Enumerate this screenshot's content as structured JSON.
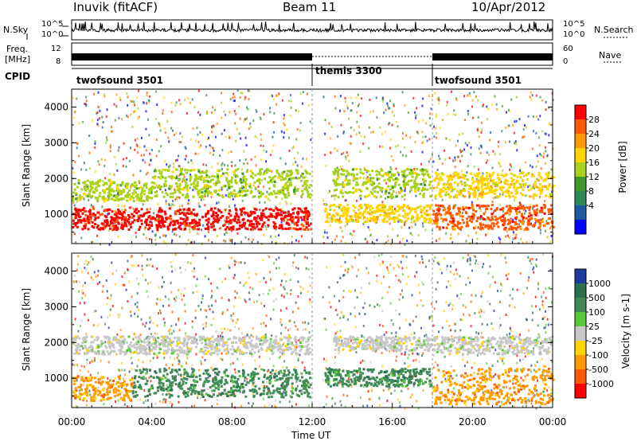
{
  "header": {
    "site": "Inuvik (fitACF)",
    "beam": "Beam 11",
    "date": "10/Apr/2012"
  },
  "summary": {
    "nsky_label": "N.Sky",
    "nsearch_label": "N.Search",
    "count_ticks": [
      "10^5",
      "10^0"
    ],
    "freq_label_line1": "Freq.",
    "freq_label_line2": "[MHz]",
    "freq_ticks": [
      "12",
      "8"
    ],
    "nave_ticks": [
      "60",
      "0"
    ],
    "nave_label": "Nave",
    "cpid_label": "CPID"
  },
  "cpid_segments": [
    {
      "name": "twofsound 3501",
      "start_hour": 0,
      "end_hour": 12
    },
    {
      "name": "themis 3300",
      "start_hour": 12,
      "end_hour": 18
    },
    {
      "name": "twofsound 3501",
      "start_hour": 18,
      "end_hour": 24
    }
  ],
  "chart_data": [
    {
      "type": "heatmap",
      "parameter": "power",
      "ylabel": "Slant Range [km]",
      "ylim": [
        180,
        4500
      ],
      "yticks": [
        "1000",
        "2000",
        "3000",
        "4000"
      ],
      "colorbar_label": "Power [dB]",
      "colorbar_ticks": [
        "28",
        "24",
        "20",
        "16",
        "12",
        "8",
        "4"
      ],
      "colorbar_colors": [
        "#ff0000",
        "#ff5a00",
        "#ff9a00",
        "#ffd400",
        "#a8d21c",
        "#3f9a2c",
        "#2e8a5a",
        "#1e5aa0",
        "#0000ff"
      ],
      "bands": [
        {
          "start": 0.0,
          "end": 11.9,
          "range_low": 600,
          "range_high": 1200,
          "level": 28
        },
        {
          "start": 0.0,
          "end": 4.0,
          "range_low": 1400,
          "range_high": 2000,
          "level": 14
        },
        {
          "start": 4.0,
          "end": 11.9,
          "range_low": 1500,
          "range_high": 2300,
          "level": 14
        },
        {
          "start": 12.6,
          "end": 17.9,
          "range_low": 800,
          "range_high": 1300,
          "level": 18
        },
        {
          "start": 13.0,
          "end": 17.9,
          "range_low": 1500,
          "range_high": 2300,
          "level": 12
        },
        {
          "start": 18.0,
          "end": 24.0,
          "range_low": 600,
          "range_high": 1300,
          "level": 26
        },
        {
          "start": 18.0,
          "end": 24.0,
          "range_low": 1500,
          "range_high": 2200,
          "level": 16
        }
      ]
    },
    {
      "type": "heatmap",
      "parameter": "velocity",
      "xlabel": "Time UT",
      "ylabel": "Slant Range [km]",
      "ylim": [
        180,
        4500
      ],
      "yticks": [
        "1000",
        "2000",
        "3000",
        "4000"
      ],
      "xticks": [
        "00:00",
        "04:00",
        "08:00",
        "12:00",
        "16:00",
        "20:00",
        "00:00"
      ],
      "x_hours": [
        0,
        4,
        8,
        12,
        16,
        20,
        24
      ],
      "colorbar_label": "Velocity [m s-1]",
      "colorbar_ticks": [
        "1000",
        "500",
        "100",
        "25",
        "-25",
        "-100",
        "-500",
        "-1000"
      ],
      "colorbar_colors": [
        "#1e3ca0",
        "#2c6e4e",
        "#3f8a55",
        "#5cc83c",
        "#c8c8c8",
        "#ffd400",
        "#ff9a00",
        "#ff5a00",
        "#ff0000"
      ],
      "bands": [
        {
          "start": 0.0,
          "end": 3.0,
          "range_low": 400,
          "range_high": 1100,
          "level": -200
        },
        {
          "start": 3.0,
          "end": 11.9,
          "range_low": 500,
          "range_high": 1300,
          "level": 300
        },
        {
          "start": 0.0,
          "end": 11.9,
          "range_low": 1700,
          "range_high": 2200,
          "level": 0
        },
        {
          "start": 12.6,
          "end": 17.9,
          "range_low": 800,
          "range_high": 1300,
          "level": 200
        },
        {
          "start": 13.0,
          "end": 17.9,
          "range_low": 1800,
          "range_high": 2200,
          "level": 0
        },
        {
          "start": 18.0,
          "end": 24.0,
          "range_low": 300,
          "range_high": 1300,
          "level": -300
        },
        {
          "start": 18.0,
          "end": 24.0,
          "range_low": 1700,
          "range_high": 2200,
          "level": 0
        }
      ]
    }
  ]
}
